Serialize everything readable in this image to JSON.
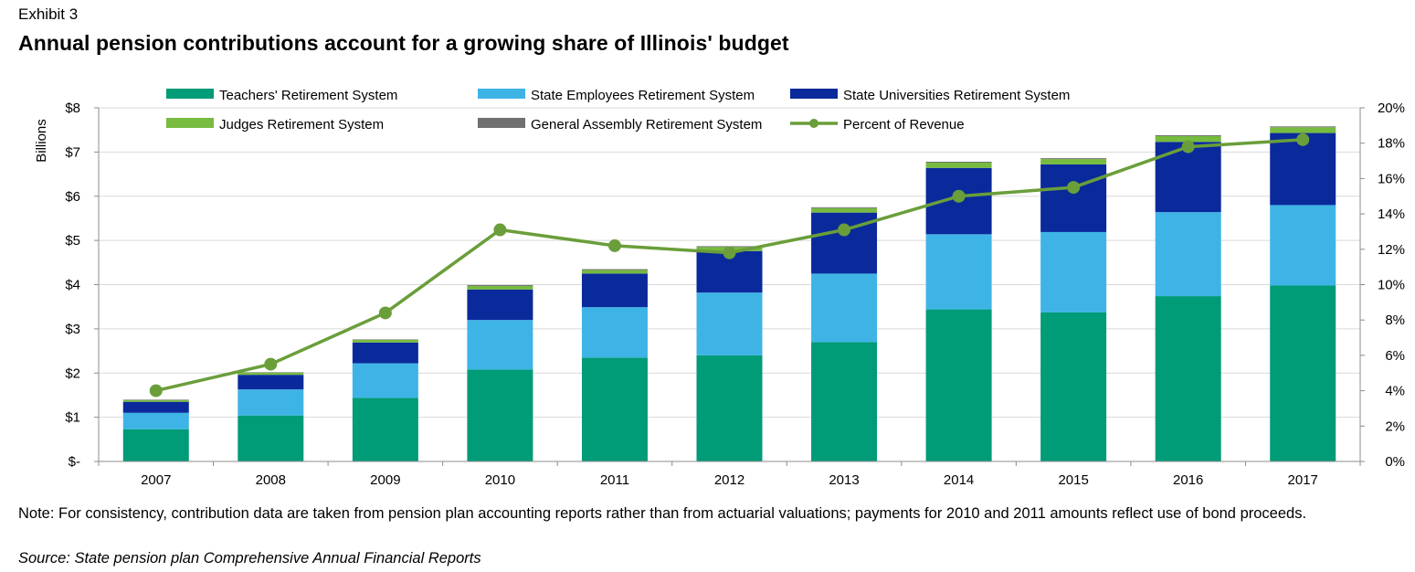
{
  "exhibit": "Exhibit 3",
  "title": "Annual pension contributions account for a growing share of Illinois' budget",
  "note": "Note: For consistency, contribution data are taken from pension plan accounting reports rather than from actuarial valuations; payments for 2010 and 2011 amounts reflect use of bond proceeds.",
  "source": "Source: State pension plan Comprehensive Annual Financial Reports",
  "colors": {
    "trs": "#009B77",
    "sers": "#3EB4E6",
    "surs": "#0A2A9C",
    "jrs": "#77BB3F",
    "gars": "#707070",
    "pct": "#6A9E3A",
    "axis": "#8c8c8c",
    "grid": "#d9d9d9"
  },
  "chart_data": {
    "type": "bar",
    "stacked": true,
    "categories": [
      "2007",
      "2008",
      "2009",
      "2010",
      "2011",
      "2012",
      "2013",
      "2014",
      "2015",
      "2016",
      "2017"
    ],
    "series": [
      {
        "name": "Teachers' Retirement System",
        "key": "trs",
        "values": [
          0.73,
          1.04,
          1.44,
          2.08,
          2.35,
          2.4,
          2.7,
          3.44,
          3.37,
          3.74,
          3.98
        ]
      },
      {
        "name": "State Employees Retirement System",
        "key": "sers",
        "values": [
          0.37,
          0.59,
          0.78,
          1.12,
          1.14,
          1.42,
          1.55,
          1.7,
          1.82,
          1.9,
          1.82
        ]
      },
      {
        "name": "State Universities Retirement System",
        "key": "surs",
        "values": [
          0.25,
          0.33,
          0.47,
          0.69,
          0.76,
          0.94,
          1.38,
          1.5,
          1.53,
          1.59,
          1.63
        ]
      },
      {
        "name": "Judges Retirement System",
        "key": "jrs",
        "values": [
          0.04,
          0.05,
          0.06,
          0.08,
          0.08,
          0.09,
          0.1,
          0.12,
          0.12,
          0.13,
          0.13
        ]
      },
      {
        "name": "General Assembly Retirement System",
        "key": "gars",
        "values": [
          0.01,
          0.01,
          0.01,
          0.02,
          0.02,
          0.02,
          0.02,
          0.02,
          0.02,
          0.02,
          0.02
        ]
      }
    ],
    "line": {
      "name": "Percent of Revenue",
      "key": "pct",
      "axis": "right",
      "values": [
        4.0,
        5.5,
        8.4,
        13.1,
        12.2,
        11.8,
        13.1,
        15.0,
        15.5,
        17.8,
        18.2
      ]
    },
    "y_left": {
      "label": "Billions",
      "ylim": [
        0,
        8
      ],
      "ticks": [
        "$-",
        "$1",
        "$2",
        "$3",
        "$4",
        "$5",
        "$6",
        "$7",
        "$8"
      ]
    },
    "y_right": {
      "ylim": [
        0,
        20
      ],
      "ticks": [
        "0%",
        "2%",
        "4%",
        "6%",
        "8%",
        "10%",
        "12%",
        "14%",
        "16%",
        "18%",
        "20%"
      ]
    },
    "grid": true,
    "legend": "top"
  }
}
